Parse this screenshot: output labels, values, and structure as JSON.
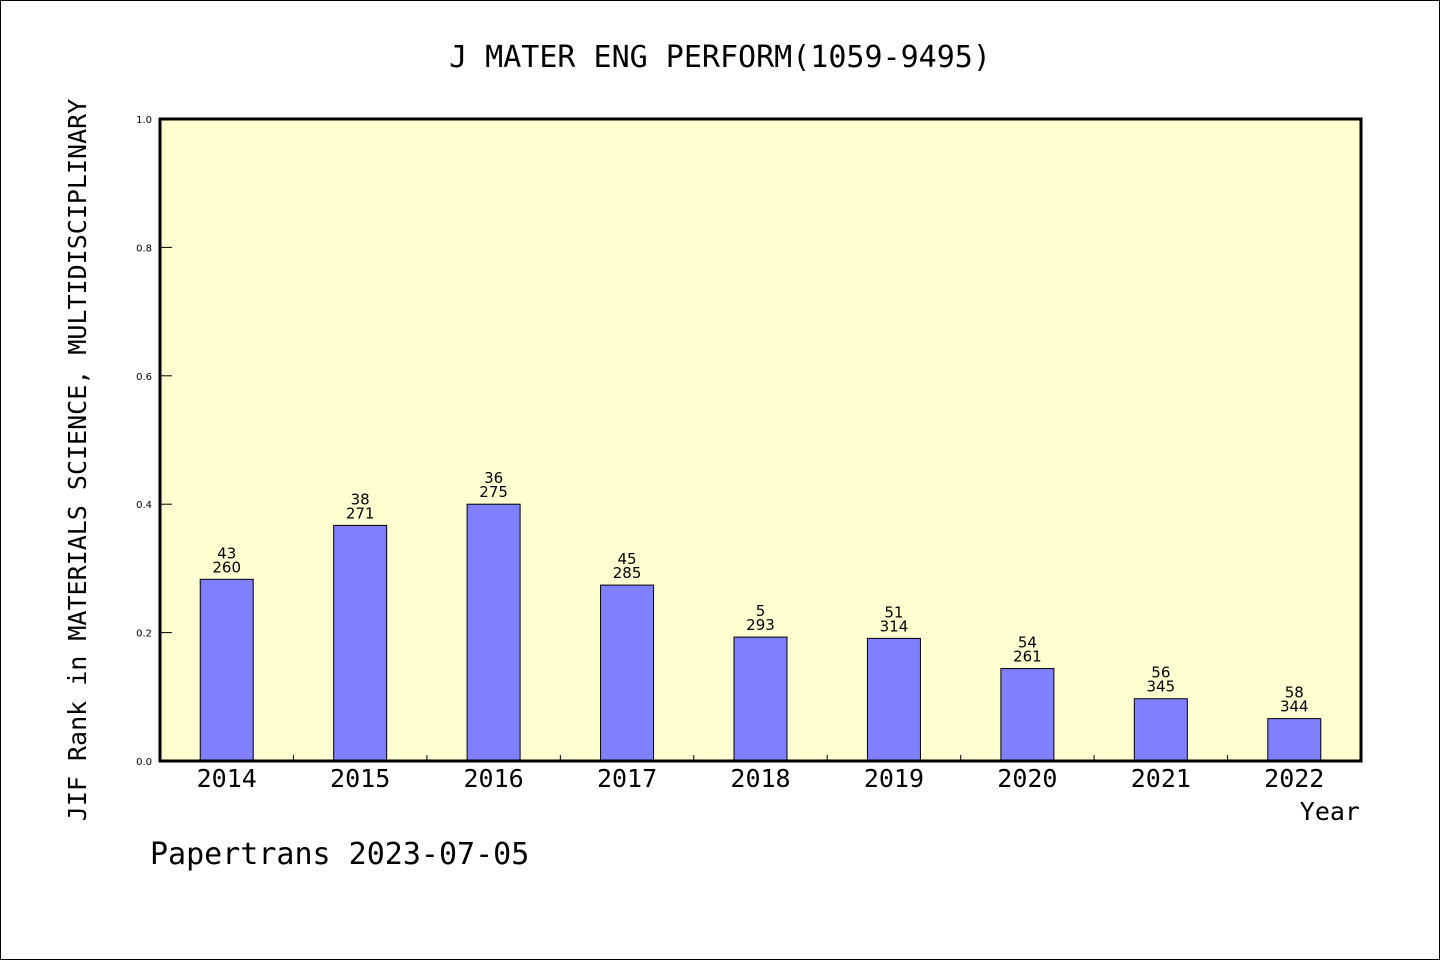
{
  "chart_data": {
    "type": "bar",
    "title": "J MATER ENG PERFORM(1059-9495)",
    "xlabel": "Year",
    "ylabel": "JIF Rank in MATERIALS SCIENCE, MULTIDISCIPLINARY",
    "ylim": [
      0,
      1.0
    ],
    "yticks": [
      "0.0",
      "0.2",
      "0.4",
      "0.6",
      "0.8",
      "1.0"
    ],
    "categories": [
      "2014",
      "2015",
      "2016",
      "2017",
      "2018",
      "2019",
      "2020",
      "2021",
      "2022"
    ],
    "values": [
      0.283,
      0.367,
      0.4,
      0.274,
      0.193,
      0.191,
      0.144,
      0.097,
      0.066
    ],
    "rank_labels": [
      "43",
      "38",
      "36",
      "45",
      "5",
      "51",
      "54",
      "56",
      "58"
    ],
    "total_labels": [
      "260",
      "271",
      "275",
      "285",
      "293",
      "314",
      "261",
      "345",
      "344"
    ],
    "grid": false,
    "legend": "none",
    "colors": {
      "plot_bg": "#ffffd2",
      "bar_fill": "#8080ff",
      "bar_stroke": "#000000"
    }
  },
  "footer": "Papertrans 2023-07-05"
}
